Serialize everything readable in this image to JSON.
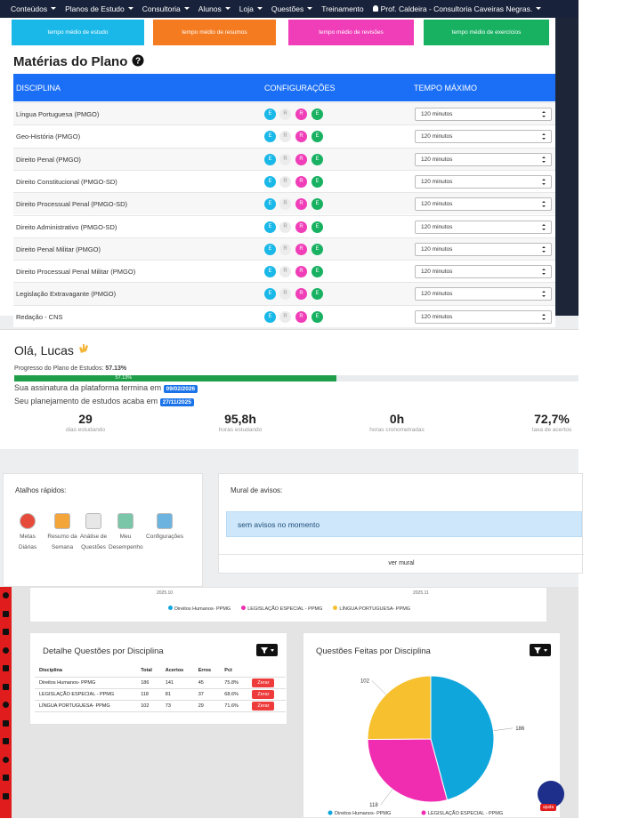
{
  "navbar": {
    "items": [
      "Conteúdos",
      "Planos de Estudo",
      "Consultoria",
      "Alunos",
      "Loja",
      "Questões",
      "Treinamento",
      "Prof. Caldeira - Consultoria Caveiras Negras."
    ]
  },
  "summary_boxes": [
    "tempo médio de estudo",
    "tempo médio de resumos",
    "tempo médio de revisões",
    "tempo médio de exercícios"
  ],
  "subjects": {
    "title": "Matérias do Plano",
    "headers": [
      "DISCIPLINA",
      "CONFIGURAÇÕES",
      "TEMPO MÁXIMO"
    ],
    "config_labels": [
      "E",
      "R",
      "R",
      "E"
    ],
    "rows": [
      {
        "name": "Língua Portuguesa (PMGO)",
        "time": "120 minutos"
      },
      {
        "name": "Geo-História (PMGO)",
        "time": "120 minutos"
      },
      {
        "name": "Direito Penal (PMGO)",
        "time": "120 minutos"
      },
      {
        "name": "Direito Constitucional (PMGO-SD)",
        "time": "120 minutos"
      },
      {
        "name": "Direito Processual Penal (PMGO-SD)",
        "time": "120 minutos"
      },
      {
        "name": "Direito Administrativo (PMGO-SD)",
        "time": "120 minutos"
      },
      {
        "name": "Direito Penal Militar (PMGO)",
        "time": "120 minutos"
      },
      {
        "name": "Direito Processual Penal Militar (PMGO)",
        "time": "120 minutos"
      },
      {
        "name": "Legislação Extravagante (PMGO)",
        "time": "120 minutos"
      },
      {
        "name": "Redação - CNS",
        "time": "120 minutos"
      }
    ]
  },
  "welcome": {
    "greeting": "Olá, Lucas",
    "progress_label": "Progresso do Plano de Estudos:",
    "progress_text": "57.13%",
    "progress": 57.13,
    "subscription_text": "Sua assinatura da plataforma termina em",
    "subscription_date": "09/02/2026",
    "plan_text": "Seu planejamento de estudos acaba em",
    "plan_date": "27/11/2025",
    "stats": [
      {
        "value": "29",
        "label": "dias estudando"
      },
      {
        "value": "95,8h",
        "label": "horas estudando"
      },
      {
        "value": "0h",
        "label": "horas cronometradas"
      },
      {
        "value": "72,7%",
        "label": "taxa de acertos"
      }
    ]
  },
  "shortcuts": {
    "title": "Atalhos rápidos:",
    "items": [
      "Metas Diárias",
      "Resumo da Semana",
      "Análise de Questões",
      "Meu Desempenho",
      "Configurações"
    ]
  },
  "notices": {
    "title": "Mural de avisos:",
    "message": "sem avisos no momento",
    "link": "ver mural"
  },
  "evolution_chart": {
    "x_labels": [
      "2025.10",
      "2025.11"
    ]
  },
  "legend": [
    "Direitos Humanos- PPMG",
    "LEGISLAÇÃO ESPECIAL - PPMG",
    "LÍNGUA PORTUGUESA- PPMG"
  ],
  "detail_table": {
    "title": "Detalhe Questões por Disciplina",
    "columns": [
      "Disciplina",
      "Total",
      "Acertos",
      "Erros",
      "Pct"
    ],
    "rows": [
      [
        "Direitos Humanos- PPMG",
        186,
        141,
        45,
        "75.8%"
      ],
      [
        "LEGISLAÇÃO ESPECIAL - PPMG",
        118,
        81,
        37,
        "68.6%"
      ],
      [
        "LÍNGUA PORTUGUESA- PPMG",
        102,
        73,
        29,
        "71.6%"
      ]
    ],
    "button": "Zerar"
  },
  "pie": {
    "title": "Questões Feitas por Disciplina",
    "values": [
      186,
      118,
      102
    ],
    "colors": [
      "#0fa6dc",
      "#f02db0",
      "#f6c02e"
    ]
  },
  "help": "ajuda"
}
